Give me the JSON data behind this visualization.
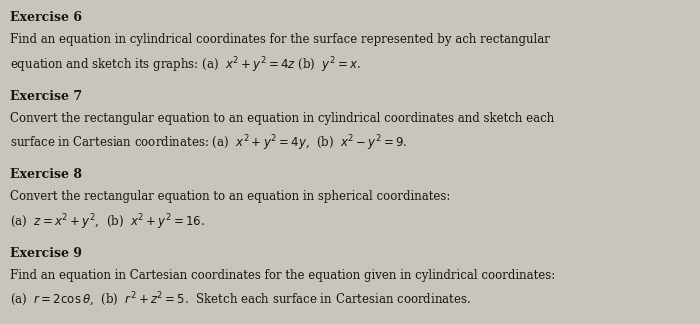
{
  "background_color": "#c9c4bc",
  "text_color": "#1a1510",
  "exercises": [
    {
      "title": "Exercise 6",
      "lines": [
        "Find an equation in cylindrical coordinates for the surface represented by ach rectangular",
        "equation and sketch its graphs: (a)  $x^2 + y^2 = 4z$ (b)  $y^2 = x$."
      ]
    },
    {
      "title": "Exercise 7",
      "lines": [
        "Convert the rectangular equation to an equation in cylindrical coordinates and sketch each",
        "surface in Cartesian coordinates: (a)  $x^2 + y^2 = 4y$,  (b)  $x^2 - y^2 = 9$."
      ]
    },
    {
      "title": "Exercise 8",
      "lines": [
        "Convert the rectangular equation to an equation in spherical coordinates:",
        "(a)  $z = x^2 + y^2$,  (b)  $x^2 + y^2 = 16$."
      ]
    },
    {
      "title": "Exercise 9",
      "lines": [
        "Find an equation in Cartesian coordinates for the equation given in cylindrical coordinates:",
        "(a)  $r = 2\\cos\\theta$,  (b)  $r^2 + z^2 = 5$.  Sketch each surface in Cartesian coordinates."
      ]
    }
  ],
  "title_fontsize": 9.0,
  "body_fontsize": 8.5,
  "figsize": [
    7.0,
    3.24
  ],
  "dpi": 100
}
